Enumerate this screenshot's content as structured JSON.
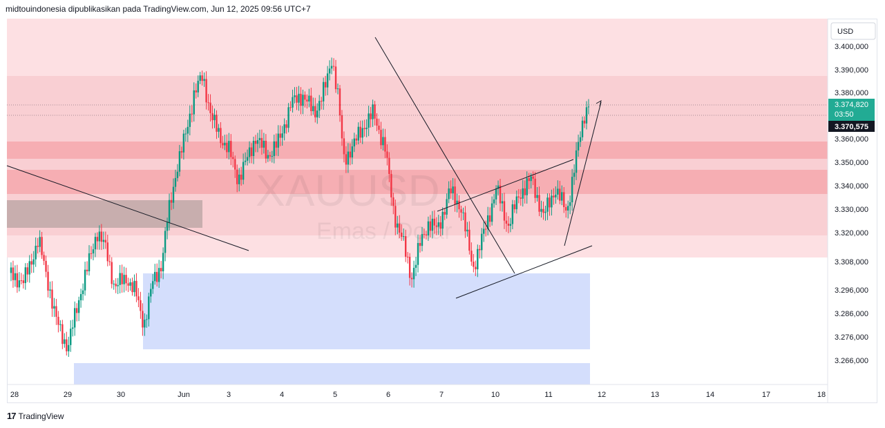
{
  "header": {
    "text": "midtouindonesia dipublikasikan pada TradingView.com, Jun 12, 2025 09:56 UTC+7"
  },
  "footer": {
    "brand": "TradingView",
    "logo_glyph": "17"
  },
  "watermark": {
    "symbol": "XAUUSD",
    "name": "Emas / Dolar"
  },
  "colors": {
    "up": "#089981",
    "down": "#f23645",
    "supply_light": "#fde0e3",
    "supply_mid": "#f9cfd3",
    "supply_dark": "#f6aeb3",
    "demand": "#d4defc",
    "old_zone": "#c8aeae",
    "price_badge": "#22ab94"
  },
  "chart_data": {
    "type": "candlestick",
    "title": "",
    "currency": "USD",
    "y_ticks": [
      "3.400,000",
      "3.390,000",
      "3.380,000",
      "3.360,000",
      "3.350,000",
      "3.340,000",
      "3.330,000",
      "3.320,000",
      "3.308,000",
      "3.296,000",
      "3.286,000",
      "3.276,000",
      "3.266,000"
    ],
    "x_ticks": [
      "28",
      "29",
      "30",
      "Jun",
      "3",
      "4",
      "5",
      "6",
      "7",
      "10",
      "11",
      "12",
      "13",
      "14",
      "17",
      "18"
    ],
    "current_price": {
      "value": "3.374,820",
      "countdown": "03:50"
    },
    "dashed_price": {
      "value": "3.370,575"
    },
    "price_path": [
      {
        "x": 0.0,
        "y": 3302
      },
      {
        "x": 0.5,
        "y": 3298
      },
      {
        "x": 1.0,
        "y": 3316
      },
      {
        "x": 1.3,
        "y": 3300
      },
      {
        "x": 1.6,
        "y": 3282
      },
      {
        "x": 2.0,
        "y": 3270
      },
      {
        "x": 2.4,
        "y": 3292
      },
      {
        "x": 2.8,
        "y": 3310
      },
      {
        "x": 3.0,
        "y": 3320
      },
      {
        "x": 3.3,
        "y": 3312
      },
      {
        "x": 3.6,
        "y": 3296
      },
      {
        "x": 4.0,
        "y": 3300
      },
      {
        "x": 4.3,
        "y": 3294
      },
      {
        "x": 4.6,
        "y": 3280
      },
      {
        "x": 4.9,
        "y": 3298
      },
      {
        "x": 5.2,
        "y": 3306
      },
      {
        "x": 5.4,
        "y": 3325
      },
      {
        "x": 5.7,
        "y": 3346
      },
      {
        "x": 6.0,
        "y": 3360
      },
      {
        "x": 6.3,
        "y": 3378
      },
      {
        "x": 6.6,
        "y": 3386
      },
      {
        "x": 6.9,
        "y": 3368
      },
      {
        "x": 7.2,
        "y": 3360
      },
      {
        "x": 7.5,
        "y": 3354
      },
      {
        "x": 7.8,
        "y": 3342
      },
      {
        "x": 8.1,
        "y": 3350
      },
      {
        "x": 8.4,
        "y": 3360
      },
      {
        "x": 8.8,
        "y": 3352
      },
      {
        "x": 9.2,
        "y": 3358
      },
      {
        "x": 9.6,
        "y": 3374
      },
      {
        "x": 10.0,
        "y": 3378
      },
      {
        "x": 10.4,
        "y": 3370
      },
      {
        "x": 10.8,
        "y": 3382
      },
      {
        "x": 11.0,
        "y": 3394
      },
      {
        "x": 11.2,
        "y": 3378
      },
      {
        "x": 11.4,
        "y": 3350
      },
      {
        "x": 11.8,
        "y": 3358
      },
      {
        "x": 12.1,
        "y": 3365
      },
      {
        "x": 12.4,
        "y": 3370
      },
      {
        "x": 12.8,
        "y": 3356
      },
      {
        "x": 13.1,
        "y": 3328
      },
      {
        "x": 13.4,
        "y": 3316
      },
      {
        "x": 13.7,
        "y": 3300
      },
      {
        "x": 14.0,
        "y": 3314
      },
      {
        "x": 14.3,
        "y": 3324
      },
      {
        "x": 14.6,
        "y": 3320
      },
      {
        "x": 15.0,
        "y": 3337
      },
      {
        "x": 15.4,
        "y": 3330
      },
      {
        "x": 15.8,
        "y": 3304
      },
      {
        "x": 16.2,
        "y": 3320
      },
      {
        "x": 16.6,
        "y": 3338
      },
      {
        "x": 17.0,
        "y": 3322
      },
      {
        "x": 17.4,
        "y": 3336
      },
      {
        "x": 17.8,
        "y": 3342
      },
      {
        "x": 18.2,
        "y": 3326
      },
      {
        "x": 18.6,
        "y": 3338
      },
      {
        "x": 19.0,
        "y": 3328
      },
      {
        "x": 19.3,
        "y": 3350
      },
      {
        "x": 19.6,
        "y": 3370
      },
      {
        "x": 19.8,
        "y": 3376
      }
    ]
  }
}
